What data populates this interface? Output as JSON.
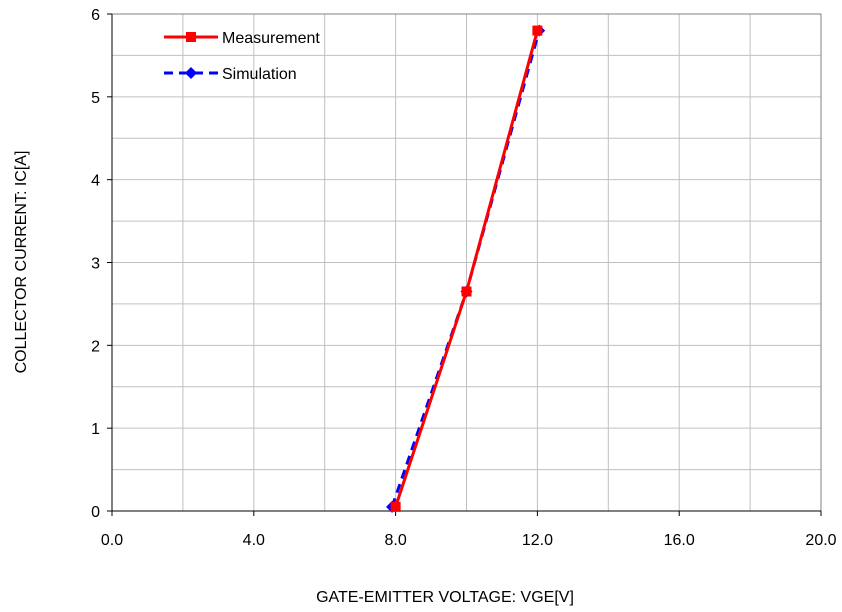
{
  "chart_data": {
    "type": "line",
    "xlabel": "GATE-EMITTER VOLTAGE: VGE[V]",
    "ylabel": "COLLECTOR CURRENT: IC[A]",
    "xlim": [
      0,
      20
    ],
    "ylim": [
      0,
      6
    ],
    "x_ticks": [
      "0.0",
      "4.0",
      "8.0",
      "12.0",
      "16.0",
      "20.0"
    ],
    "y_ticks": [
      "0",
      "1",
      "2",
      "3",
      "4",
      "5",
      "6"
    ],
    "grid": true,
    "legend_position": "top-left",
    "series": [
      {
        "name": "Measurement",
        "color": "#ff0000",
        "marker": "square",
        "line_style": "solid",
        "points": [
          [
            8.0,
            0.05
          ],
          [
            10.0,
            2.65
          ],
          [
            12.0,
            5.8
          ]
        ]
      },
      {
        "name": "Simulation",
        "color": "#0000ff",
        "marker": "diamond",
        "line_style": "dashed",
        "points": [
          [
            7.9,
            0.05
          ],
          [
            10.0,
            2.65
          ],
          [
            12.05,
            5.8
          ]
        ]
      }
    ]
  }
}
